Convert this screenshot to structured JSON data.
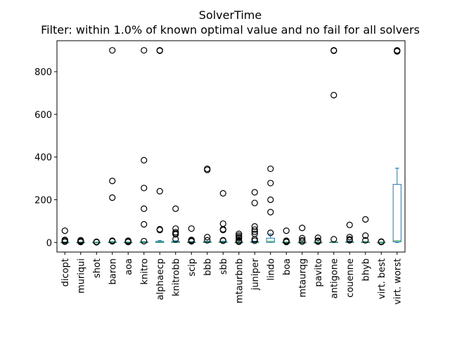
{
  "chart_data": {
    "type": "box",
    "title": "SolverTime",
    "subtitle": "Filter: within 1.0% of known optimal value and no fail for all solvers",
    "xlabel": "",
    "ylabel": "",
    "ylim": [
      -45,
      945
    ],
    "yticks": [
      0,
      200,
      400,
      600,
      800
    ],
    "grid": false,
    "box_color": "#1f77b4",
    "median_color": "#2ca02c",
    "flier_color": "#000000",
    "categories": [
      "dicopt",
      "muriqui",
      "shot",
      "baron",
      "aoa",
      "knitro",
      "alphaecp",
      "knitrobb",
      "scip",
      "bbb",
      "sbb",
      "mtaurbnb",
      "juniper",
      "lindo",
      "boa",
      "mtaurqg",
      "pavito",
      "antigone",
      "couenne",
      "bhyb",
      "virt. best",
      "virt. worst"
    ],
    "boxes": [
      {
        "name": "dicopt",
        "q1": 0,
        "median": 0.5,
        "q3": 1,
        "whisker_low": 0,
        "whisker_high": 2,
        "fliers": [
          55,
          12,
          8,
          3
        ]
      },
      {
        "name": "muriqui",
        "q1": 0,
        "median": 0.5,
        "q3": 1,
        "whisker_low": 0,
        "whisker_high": 2,
        "fliers": [
          10,
          7,
          4,
          3,
          2
        ]
      },
      {
        "name": "shot",
        "q1": 0,
        "median": 0.3,
        "q3": 0.8,
        "whisker_low": 0,
        "whisker_high": 1.5,
        "fliers": [
          3,
          2,
          1
        ]
      },
      {
        "name": "baron",
        "q1": 0,
        "median": 1,
        "q3": 2,
        "whisker_low": 0,
        "whisker_high": 4,
        "fliers": [
          900,
          288,
          210,
          8,
          5
        ]
      },
      {
        "name": "aoa",
        "q1": 0,
        "median": 0.5,
        "q3": 1,
        "whisker_low": 0,
        "whisker_high": 2,
        "fliers": [
          8,
          4,
          2
        ]
      },
      {
        "name": "knitro",
        "q1": 0,
        "median": 1,
        "q3": 2,
        "whisker_low": 0,
        "whisker_high": 4,
        "fliers": [
          900,
          385,
          255,
          158,
          85,
          6
        ]
      },
      {
        "name": "alphaecp",
        "q1": 0,
        "median": 2,
        "q3": 5,
        "whisker_low": 0,
        "whisker_high": 9,
        "fliers": [
          900,
          898,
          240,
          62,
          58
        ]
      },
      {
        "name": "knitrobb",
        "q1": 0,
        "median": 2,
        "q3": 4,
        "whisker_low": 0,
        "whisker_high": 8,
        "fliers": [
          158,
          65,
          48,
          42,
          38,
          15
        ]
      },
      {
        "name": "scip",
        "q1": 0,
        "median": 1,
        "q3": 2,
        "whisker_low": 0,
        "whisker_high": 4,
        "fliers": [
          65,
          12,
          8,
          5
        ]
      },
      {
        "name": "bbb",
        "q1": 0,
        "median": 1,
        "q3": 3,
        "whisker_low": 0,
        "whisker_high": 6,
        "fliers": [
          345,
          340,
          25,
          10
        ]
      },
      {
        "name": "sbb",
        "q1": 0,
        "median": 1,
        "q3": 3,
        "whisker_low": 0,
        "whisker_high": 6,
        "fliers": [
          230,
          88,
          62,
          58,
          10,
          8
        ]
      },
      {
        "name": "mtaurbnb",
        "q1": 0,
        "median": 0.5,
        "q3": 1,
        "whisker_low": 0,
        "whisker_high": 2,
        "fliers": [
          40,
          32,
          25,
          20,
          10,
          5,
          3
        ]
      },
      {
        "name": "juniper",
        "q1": 0,
        "median": 1,
        "q3": 3,
        "whisker_low": 0,
        "whisker_high": 6,
        "fliers": [
          235,
          185,
          75,
          60,
          50,
          40,
          15,
          8
        ]
      },
      {
        "name": "lindo",
        "q1": 0,
        "median": 5,
        "q3": 20,
        "whisker_low": 0,
        "whisker_high": 40,
        "fliers": [
          345,
          278,
          200,
          142,
          45
        ]
      },
      {
        "name": "boa",
        "q1": 0,
        "median": 0.5,
        "q3": 1,
        "whisker_low": 0,
        "whisker_high": 2,
        "fliers": [
          55,
          8,
          4,
          2
        ]
      },
      {
        "name": "mtaurqg",
        "q1": 0,
        "median": 0.5,
        "q3": 1,
        "whisker_low": 0,
        "whisker_high": 2,
        "fliers": [
          68,
          20,
          10,
          4
        ]
      },
      {
        "name": "pavito",
        "q1": 0,
        "median": 0.5,
        "q3": 1,
        "whisker_low": 0,
        "whisker_high": 2,
        "fliers": [
          22,
          8,
          4
        ]
      },
      {
        "name": "antigone",
        "q1": 0,
        "median": 1,
        "q3": 2,
        "whisker_low": 0,
        "whisker_high": 4,
        "fliers": [
          900,
          898,
          690,
          15
        ]
      },
      {
        "name": "couenne",
        "q1": 0,
        "median": 1,
        "q3": 3,
        "whisker_low": 0,
        "whisker_high": 6,
        "fliers": [
          82,
          25,
          15,
          10
        ]
      },
      {
        "name": "bhyb",
        "q1": 0,
        "median": 1,
        "q3": 2,
        "whisker_low": 0,
        "whisker_high": 4,
        "fliers": [
          108,
          32,
          10
        ]
      },
      {
        "name": "virt. best",
        "q1": 0,
        "median": 0.3,
        "q3": 0.8,
        "whisker_low": 0,
        "whisker_high": 1.5,
        "fliers": [
          4,
          2
        ]
      },
      {
        "name": "virt. worst",
        "q1": 3,
        "median": 8,
        "q3": 272,
        "whisker_low": 0,
        "whisker_high": 348,
        "fliers": [
          900,
          898,
          895
        ]
      }
    ]
  }
}
